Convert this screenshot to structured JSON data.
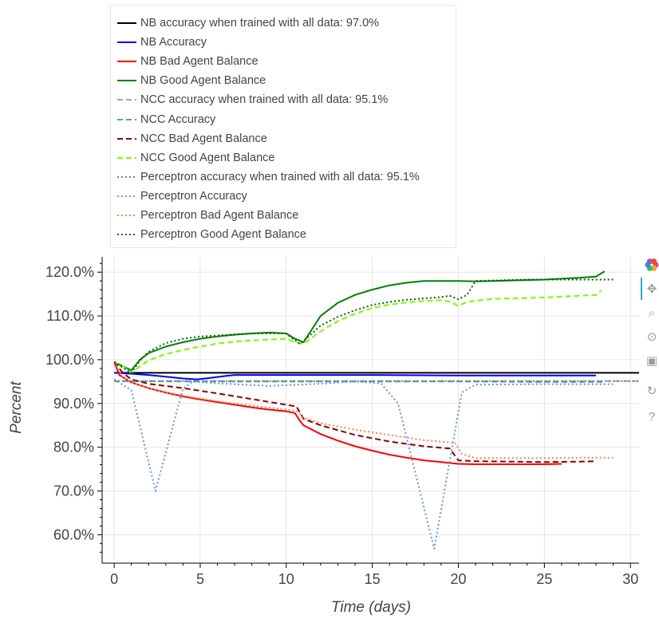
{
  "toolbar": {
    "tools": [
      {
        "name": "bokeh-logo-icon",
        "glyph": ""
      },
      {
        "name": "pan-icon",
        "glyph": "✥"
      },
      {
        "name": "box-zoom-icon",
        "glyph": "⌕"
      },
      {
        "name": "wheel-zoom-icon",
        "glyph": "⊙"
      },
      {
        "name": "save-icon",
        "glyph": "▣"
      },
      {
        "name": "reset-icon",
        "glyph": "↻"
      },
      {
        "name": "help-icon",
        "glyph": "?"
      }
    ]
  },
  "chart_data": {
    "type": "line",
    "xlabel": "Time (days)",
    "ylabel": "Percent",
    "xlim": [
      -0.7,
      30.5
    ],
    "ylim": [
      53.5,
      123.5
    ],
    "xticks": [
      0,
      5,
      10,
      15,
      20,
      25,
      30
    ],
    "yticks": [
      60,
      70,
      80,
      90,
      100,
      110,
      120
    ],
    "ytick_suffix": "%",
    "grid": true,
    "legend_position": "top-left, outside plot",
    "series": [
      {
        "name": "NB accuracy when trained with all data: 97.0%",
        "color": "#000000",
        "dash": "solid",
        "x": [
          0,
          30.5
        ],
        "y": [
          97.0,
          97.0
        ]
      },
      {
        "name": "NB Accuracy",
        "color": "#0000ff",
        "dash": "solid",
        "x": [
          0,
          1,
          2,
          3,
          4,
          4.8,
          5.5,
          6.5,
          7,
          10,
          15,
          20,
          25,
          28
        ],
        "y": [
          97.0,
          96.8,
          96.5,
          96.1,
          95.7,
          95.5,
          95.8,
          96.3,
          96.5,
          96.5,
          96.5,
          96.4,
          96.4,
          96.4
        ]
      },
      {
        "name": "NB Bad Agent Balance",
        "color": "#ff0000",
        "dash": "solid",
        "x": [
          0,
          0.3,
          1,
          2,
          3,
          4,
          5,
          6,
          7,
          8,
          9,
          10,
          10.5,
          10.8,
          11,
          12,
          13,
          14,
          15,
          16,
          17,
          18,
          19,
          20,
          21,
          22,
          23,
          24,
          25,
          26
        ],
        "y": [
          99.5,
          96.5,
          94.8,
          93.5,
          92.5,
          91.6,
          90.9,
          90.3,
          89.7,
          89.1,
          88.6,
          88.2,
          87.8,
          86.0,
          85.0,
          83.0,
          81.5,
          80.2,
          79.2,
          78.3,
          77.6,
          77.0,
          76.6,
          76.2,
          76.1,
          76.1,
          76.1,
          76.1,
          76.1,
          76.2
        ]
      },
      {
        "name": "NB Good Agent Balance",
        "color": "#008000",
        "dash": "solid",
        "x": [
          0,
          0.5,
          1,
          1.5,
          2,
          3,
          4,
          5,
          6,
          7,
          8,
          9,
          10,
          10.5,
          11,
          11.5,
          12,
          13,
          14,
          15,
          16,
          17,
          18,
          19,
          20,
          21,
          22,
          23,
          24,
          25,
          26,
          27,
          28,
          28.5
        ],
        "y": [
          99.5,
          98.5,
          97.6,
          100.0,
          101.5,
          103.0,
          104.0,
          104.8,
          105.3,
          105.7,
          106.0,
          106.2,
          106.0,
          104.8,
          104.0,
          107.0,
          110.0,
          113.0,
          114.8,
          116.0,
          117.0,
          117.6,
          118.0,
          118.0,
          118.0,
          117.9,
          118.0,
          118.1,
          118.2,
          118.3,
          118.5,
          118.7,
          119.0,
          120.2
        ]
      },
      {
        "name": "NCC accuracy when trained with all data: 95.1%",
        "color": "#a2a9ae",
        "dash": "dashed",
        "x": [
          0,
          30.5
        ],
        "y": [
          95.1,
          95.1
        ]
      },
      {
        "name": "NCC Accuracy",
        "color": "#5f9ea0",
        "dash": "dashed",
        "x": [
          0,
          5,
          10,
          15,
          20,
          25,
          28.5
        ],
        "y": [
          95.1,
          95.0,
          95.0,
          95.0,
          95.0,
          94.9,
          94.9
        ]
      },
      {
        "name": "NCC Bad Agent Balance",
        "color": "#8b0000",
        "dash": "dashed",
        "x": [
          0,
          0.5,
          1,
          2,
          4,
          6,
          8,
          10,
          10.6,
          11,
          12,
          14,
          16,
          18,
          19.5,
          20,
          21,
          23,
          25,
          27,
          28
        ],
        "y": [
          99.5,
          97.0,
          95.5,
          94.5,
          93.5,
          92.3,
          91.0,
          89.7,
          89.3,
          86.5,
          85.0,
          82.8,
          81.3,
          80.2,
          79.7,
          77.0,
          76.8,
          76.7,
          76.6,
          76.7,
          76.8
        ]
      },
      {
        "name": "NCC Good Agent Balance",
        "color": "#7cfc00",
        "dash": "dashed",
        "x": [
          0,
          0.5,
          1,
          1.5,
          2,
          3,
          4,
          5,
          6,
          7,
          8,
          9,
          10,
          10.5,
          11,
          12,
          13,
          14,
          15,
          16,
          17,
          18,
          19,
          19.5,
          20,
          20.5,
          21,
          22,
          23,
          24,
          25,
          26,
          27,
          28,
          28.3
        ],
        "y": [
          99.5,
          98.5,
          97.0,
          98.5,
          99.8,
          101.3,
          102.2,
          103.0,
          103.7,
          104.1,
          104.4,
          104.6,
          104.8,
          104.0,
          103.6,
          106.5,
          108.8,
          110.5,
          111.8,
          112.6,
          113.1,
          113.4,
          113.6,
          113.3,
          112.3,
          113.2,
          113.5,
          113.9,
          114.0,
          114.1,
          114.2,
          114.4,
          114.6,
          114.8,
          115.8
        ]
      },
      {
        "name": "Perceptron accuracy when trained with all data: 95.1%",
        "color": "#708090",
        "dash": "dotted",
        "x": [
          0,
          30.5
        ],
        "y": [
          95.1,
          95.1
        ]
      },
      {
        "name": "Perceptron Accuracy",
        "color": "#6495ed",
        "dash": "dotted",
        "x": [
          0,
          1,
          2.4,
          4,
          4.6,
          6,
          9,
          12,
          14,
          15.5,
          16.5,
          18.6,
          20.2,
          21,
          25,
          29
        ],
        "y": [
          95.5,
          93.0,
          70.0,
          93.5,
          95.0,
          94.6,
          94.0,
          94.5,
          95.0,
          94.6,
          90.0,
          56.8,
          92.5,
          94.3,
          94.4,
          94.4
        ]
      },
      {
        "name": "Perceptron Bad Agent Balance",
        "color": "#ff7f50",
        "dash": "dotted",
        "x": [
          0,
          0.5,
          1,
          2,
          3,
          4,
          6,
          8,
          10,
          10.6,
          11,
          12,
          14,
          16,
          18,
          19.8,
          20.2,
          21,
          23,
          25,
          27,
          29
        ],
        "y": [
          99.5,
          96.0,
          94.8,
          93.5,
          92.5,
          91.8,
          90.5,
          89.5,
          88.6,
          88.3,
          86.8,
          85.5,
          84.0,
          82.8,
          81.6,
          81.0,
          78.5,
          77.5,
          77.5,
          77.5,
          77.6,
          77.6
        ]
      },
      {
        "name": "Perceptron Good Agent Balance",
        "color": "#006400",
        "dash": "dotted",
        "x": [
          0,
          0.5,
          1,
          1.5,
          2,
          3,
          4,
          5,
          6,
          7,
          8,
          9,
          10,
          10.3,
          10.8,
          11.5,
          12,
          13,
          14,
          15,
          16,
          17,
          18,
          19,
          19.5,
          20,
          20.5,
          21,
          22,
          23,
          24,
          25,
          26,
          27,
          28,
          29
        ],
        "y": [
          99.5,
          98.2,
          97.0,
          99.8,
          101.8,
          103.8,
          104.8,
          105.3,
          105.5,
          105.8,
          106.0,
          106.0,
          106.0,
          105.0,
          103.6,
          106.0,
          107.8,
          109.8,
          111.3,
          112.5,
          113.2,
          113.7,
          114.0,
          114.3,
          114.6,
          113.8,
          114.8,
          118.0,
          118.1,
          118.2,
          118.3,
          118.3,
          118.3,
          118.3,
          118.3,
          118.3
        ]
      }
    ]
  }
}
